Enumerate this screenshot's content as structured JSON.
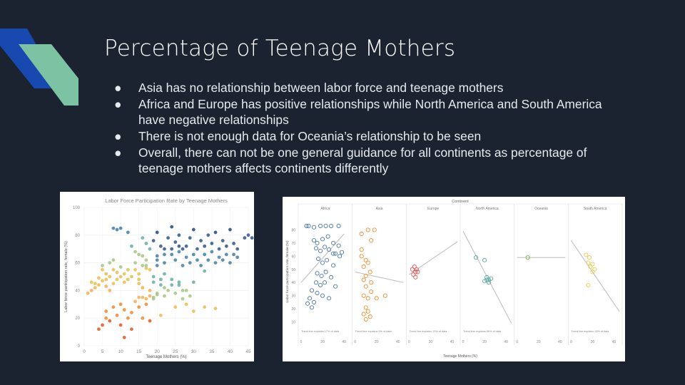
{
  "slide": {
    "title": "Percentage of Teenage Mothers",
    "bullets": [
      "Asia has no relationship between labor force and teenage mothers",
      "Africa and Europe has positive relationships while North America and South America have negative relationships",
      "There is not enough data for Oceania’s relationship to be seen",
      "Overall, there can not be one general guidance for all continents as percentage of teenage mothers affects continents differently"
    ],
    "bullet_glyph": "●",
    "colors": {
      "background": "#1b2330",
      "accent_blue": "#1849b0",
      "accent_green": "#7cc3a3"
    }
  },
  "chart_data": [
    {
      "type": "scatter",
      "title": "Labor Force Participation Rate by Teenage Mothers",
      "xlabel": "Teenage Mothers (%)",
      "ylabel": "Labor force participation rate, female (%)",
      "xlim": [
        0,
        45
      ],
      "ylim": [
        0,
        100
      ],
      "xticks": [
        "0",
        "5",
        "10",
        "15",
        "20",
        "25",
        "30",
        "35",
        "40",
        "45"
      ],
      "yticks": [
        "0",
        "20",
        "40",
        "60",
        "80",
        "100"
      ],
      "grid": true,
      "points": [
        [
          1,
          38
        ],
        [
          2,
          40
        ],
        [
          2,
          46
        ],
        [
          3,
          42
        ],
        [
          3,
          45
        ],
        [
          4,
          44
        ],
        [
          4,
          49
        ],
        [
          5,
          47
        ],
        [
          5,
          58
        ],
        [
          5,
          55
        ],
        [
          6,
          52
        ],
        [
          6,
          48
        ],
        [
          6,
          43
        ],
        [
          7,
          60
        ],
        [
          7,
          50
        ],
        [
          7,
          40
        ],
        [
          8,
          45
        ],
        [
          8,
          55
        ],
        [
          8,
          62
        ],
        [
          9,
          48
        ],
        [
          9,
          53
        ],
        [
          10,
          50
        ],
        [
          10,
          57
        ],
        [
          11,
          46
        ],
        [
          11,
          52
        ],
        [
          12,
          55
        ],
        [
          12,
          48
        ],
        [
          13,
          50
        ],
        [
          14,
          60
        ],
        [
          15,
          52
        ],
        [
          15,
          45
        ],
        [
          16,
          58
        ],
        [
          17,
          62
        ],
        [
          18,
          55
        ],
        [
          19,
          50
        ],
        [
          20,
          62
        ],
        [
          21,
          48
        ],
        [
          22,
          66
        ],
        [
          24,
          70
        ],
        [
          26,
          72
        ],
        [
          4,
          12
        ],
        [
          5,
          15
        ],
        [
          6,
          20
        ],
        [
          6,
          25
        ],
        [
          7,
          18
        ],
        [
          8,
          28
        ],
        [
          9,
          22
        ],
        [
          10,
          30
        ],
        [
          10,
          15
        ],
        [
          11,
          26
        ],
        [
          12,
          20
        ],
        [
          13,
          24
        ],
        [
          14,
          32
        ],
        [
          15,
          28
        ],
        [
          16,
          20
        ],
        [
          17,
          30
        ],
        [
          18,
          18
        ],
        [
          19,
          34
        ],
        [
          20,
          38
        ],
        [
          21,
          22
        ],
        [
          22,
          36
        ],
        [
          25,
          28
        ],
        [
          28,
          30
        ],
        [
          30,
          25
        ],
        [
          33,
          28
        ],
        [
          36,
          27
        ],
        [
          11,
          6
        ],
        [
          13,
          12
        ],
        [
          8,
          85
        ],
        [
          9,
          84
        ],
        [
          10,
          85
        ],
        [
          12,
          82
        ],
        [
          13,
          72
        ],
        [
          14,
          68
        ],
        [
          15,
          66
        ],
        [
          16,
          78
        ],
        [
          17,
          74
        ],
        [
          17,
          58
        ],
        [
          18,
          70
        ],
        [
          19,
          76
        ],
        [
          20,
          65
        ],
        [
          20,
          82
        ],
        [
          21,
          72
        ],
        [
          22,
          70
        ],
        [
          22,
          60
        ],
        [
          23,
          78
        ],
        [
          24,
          66
        ],
        [
          24,
          86
        ],
        [
          25,
          62
        ],
        [
          25,
          75
        ],
        [
          26,
          68
        ],
        [
          26,
          80
        ],
        [
          27,
          70
        ],
        [
          27,
          58
        ],
        [
          28,
          72
        ],
        [
          28,
          64
        ],
        [
          29,
          78
        ],
        [
          29,
          60
        ],
        [
          30,
          66
        ],
        [
          30,
          84
        ],
        [
          31,
          70
        ],
        [
          31,
          62
        ],
        [
          32,
          76
        ],
        [
          32,
          58
        ],
        [
          33,
          72
        ],
        [
          33,
          66
        ],
        [
          34,
          80
        ],
        [
          34,
          62
        ],
        [
          35,
          74
        ],
        [
          35,
          68
        ],
        [
          36,
          82
        ],
        [
          36,
          60
        ],
        [
          37,
          70
        ],
        [
          37,
          64
        ],
        [
          38,
          76
        ],
        [
          38,
          62
        ],
        [
          39,
          66
        ],
        [
          39,
          72
        ],
        [
          40,
          84
        ],
        [
          40,
          60
        ],
        [
          41,
          74
        ],
        [
          41,
          66
        ],
        [
          42,
          64
        ],
        [
          42,
          70
        ],
        [
          44,
          78
        ],
        [
          45,
          80
        ],
        [
          46,
          78
        ],
        [
          15,
          35
        ],
        [
          16,
          35
        ],
        [
          17,
          34
        ],
        [
          18,
          36
        ],
        [
          19,
          35
        ],
        [
          20,
          37
        ],
        [
          24,
          44
        ],
        [
          26,
          46
        ],
        [
          27,
          40
        ],
        [
          30,
          46
        ],
        [
          33,
          54
        ],
        [
          14,
          55
        ],
        [
          15,
          48
        ],
        [
          16,
          42
        ],
        [
          17,
          56
        ],
        [
          18,
          40
        ],
        [
          20,
          58
        ],
        [
          21,
          44
        ],
        [
          22,
          52
        ],
        [
          23,
          40
        ],
        [
          24,
          48
        ],
        [
          25,
          38
        ],
        [
          26,
          44
        ],
        [
          27,
          34
        ],
        [
          28,
          40
        ],
        [
          29,
          36
        ],
        [
          16,
          65
        ],
        [
          19,
          46
        ],
        [
          22,
          42
        ]
      ]
    },
    {
      "type": "scatter",
      "title": "Continent",
      "xlabel": "Teenage Mothers (%)",
      "ylabel": "Labor force participation rate, female (%)",
      "ylim": [
        0,
        90
      ],
      "yticks": [
        "10",
        "20",
        "30",
        "40",
        "50",
        "60",
        "70",
        "80"
      ],
      "xticks": [
        "0",
        "20",
        "40"
      ],
      "panels": [
        {
          "name": "Africa",
          "xlim": [
            0,
            45
          ],
          "trend_note": "Trend line explains 17% of data",
          "trend": [
            [
              0,
              40
            ],
            [
              40,
              77
            ]
          ],
          "points": [
            [
              5,
              83
            ],
            [
              7,
              83
            ],
            [
              12,
              82
            ],
            [
              18,
              83
            ],
            [
              23,
              83
            ],
            [
              28,
              83
            ],
            [
              35,
              83
            ],
            [
              12,
              72
            ],
            [
              15,
              70
            ],
            [
              20,
              73
            ],
            [
              25,
              75
            ],
            [
              30,
              70
            ],
            [
              35,
              68
            ],
            [
              14,
              66
            ],
            [
              18,
              64
            ],
            [
              22,
              67
            ],
            [
              26,
              65
            ],
            [
              32,
              62
            ],
            [
              38,
              63
            ],
            [
              16,
              58
            ],
            [
              20,
              55
            ],
            [
              24,
              57
            ],
            [
              30,
              53
            ],
            [
              15,
              47
            ],
            [
              19,
              45
            ],
            [
              23,
              48
            ],
            [
              28,
              44
            ],
            [
              14,
              40
            ],
            [
              18,
              38
            ],
            [
              22,
              40
            ],
            [
              32,
              37
            ],
            [
              10,
              34
            ],
            [
              15,
              32
            ],
            [
              20,
              30
            ],
            [
              26,
              28
            ],
            [
              8,
              28
            ],
            [
              12,
              25
            ],
            [
              6,
              24
            ],
            [
              10,
              21
            ],
            [
              30,
              62
            ],
            [
              36,
              60
            ]
          ]
        },
        {
          "name": "Asia",
          "xlim": [
            0,
            45
          ],
          "trend_note": "Trend line explains 0% of data",
          "trend": [
            [
              0,
              48
            ],
            [
              45,
              40
            ]
          ],
          "points": [
            [
              6,
              77
            ],
            [
              12,
              80
            ],
            [
              18,
              80
            ],
            [
              15,
              72
            ],
            [
              6,
              65
            ],
            [
              6,
              60
            ],
            [
              10,
              57
            ],
            [
              8,
              52
            ],
            [
              12,
              55
            ],
            [
              14,
              48
            ],
            [
              10,
              45
            ],
            [
              8,
              42
            ],
            [
              15,
              40
            ],
            [
              10,
              37
            ],
            [
              15,
              33
            ],
            [
              8,
              30
            ],
            [
              12,
              28
            ],
            [
              20,
              28
            ],
            [
              28,
              30
            ],
            [
              10,
              21
            ],
            [
              12,
              18
            ],
            [
              8,
              16
            ],
            [
              14,
              14
            ],
            [
              10,
              12
            ]
          ]
        },
        {
          "name": "Europe",
          "xlim": [
            0,
            45
          ],
          "trend_note": "Trend line explains 13% of data",
          "trend": [
            [
              0,
              46
            ],
            [
              45,
              71
            ]
          ],
          "points": [
            [
              5,
              52
            ],
            [
              7,
              50
            ],
            [
              6,
              48
            ],
            [
              4,
              46
            ],
            [
              8,
              48
            ],
            [
              6,
              44
            ],
            [
              3,
              50
            ]
          ]
        },
        {
          "name": "North America",
          "xlim": [
            0,
            45
          ],
          "trend_note": "Trend line explains 56% of data",
          "trend": [
            [
              0,
              79
            ],
            [
              45,
              9
            ]
          ],
          "points": [
            [
              12,
              59
            ],
            [
              20,
              57
            ],
            [
              22,
              44
            ],
            [
              24,
              42
            ],
            [
              20,
              41
            ],
            [
              26,
              43
            ],
            [
              24,
              40
            ],
            [
              22,
              42
            ]
          ]
        },
        {
          "name": "Oceania",
          "xlim": [
            0,
            45
          ],
          "trend_note": "",
          "trend": [
            [
              0,
              59
            ],
            [
              45,
              59
            ]
          ],
          "points": [
            [
              10,
              59
            ]
          ]
        },
        {
          "name": "South America",
          "xlim": [
            0,
            45
          ],
          "trend_note": "Trend line explains 13% of data",
          "trend": [
            [
              0,
              72
            ],
            [
              45,
              18
            ]
          ],
          "points": [
            [
              14,
              61
            ],
            [
              17,
              59
            ],
            [
              16,
              55
            ],
            [
              20,
              54
            ],
            [
              18,
              52
            ],
            [
              22,
              50
            ],
            [
              20,
              48
            ],
            [
              16,
              38
            ]
          ]
        }
      ]
    }
  ]
}
